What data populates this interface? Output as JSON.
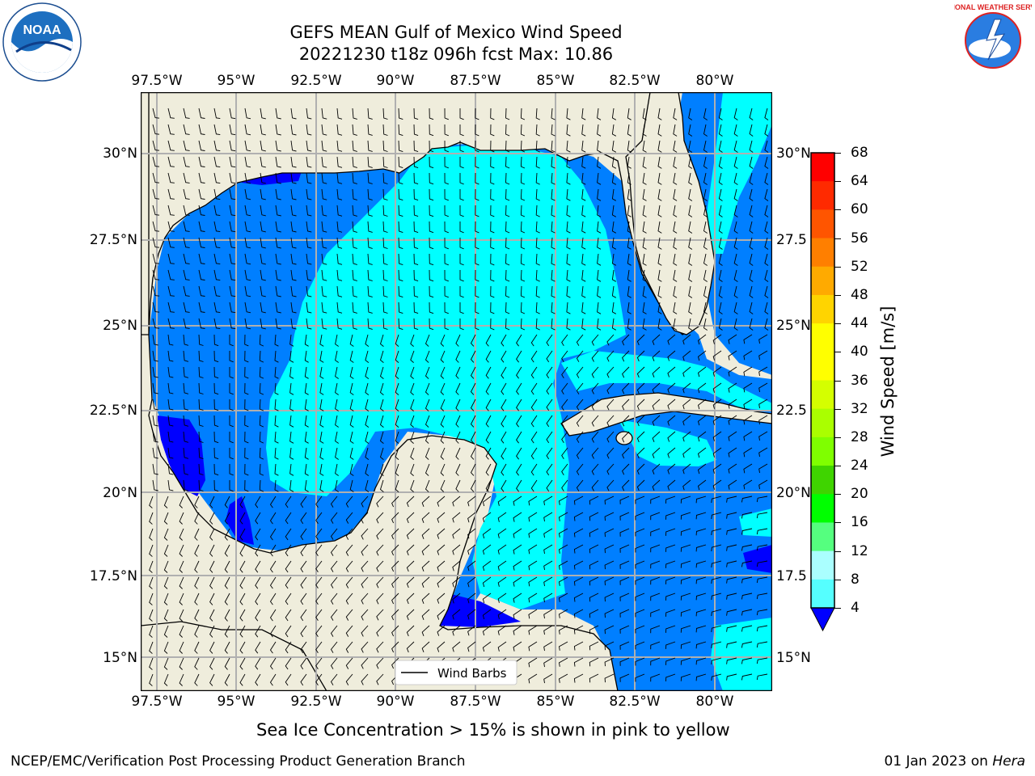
{
  "title": {
    "line1": "GEFS MEAN Gulf of Mexico Wind Speed",
    "line2": "20221230 t18z 096h fcst   Max: 10.86"
  },
  "logos": {
    "left": "NOAA",
    "right": "NATIONAL WEATHER SERVICE"
  },
  "axes": {
    "lon_ticks": [
      "97.5°W",
      "95°W",
      "92.5°W",
      "90°W",
      "87.5°W",
      "85°W",
      "82.5°W",
      "80°W"
    ],
    "lat_ticks_left": [
      "30°N",
      "27.5°N",
      "25°N",
      "22.5°N",
      "20°N",
      "17.5°N",
      "15°N"
    ],
    "lat_ticks_right": [
      "30°N",
      "27.5",
      "25°N",
      "22.5",
      "20°N",
      "17.5",
      "15°N"
    ]
  },
  "legend": {
    "label": "Wind Barbs"
  },
  "colorbar": {
    "label": "Wind Speed [m/s]",
    "ticks": [
      "68",
      "64",
      "60",
      "56",
      "52",
      "48",
      "44",
      "40",
      "36",
      "32",
      "28",
      "24",
      "20",
      "16",
      "12",
      "8",
      "4"
    ],
    "colors": [
      "#ff0000",
      "#ff2a00",
      "#ff5500",
      "#ff7f00",
      "#ffaa00",
      "#ffd400",
      "#ffff00",
      "#ffff00",
      "#d4ff00",
      "#aaff00",
      "#7fff00",
      "#3fd400",
      "#00ff00",
      "#55ff7f",
      "#aaffff",
      "#55ffff",
      "#00ffff",
      "#007fff"
    ]
  },
  "map_colors": {
    "land": "#efeddc",
    "c4": "#007fff",
    "c8": "#00ffff",
    "c0": "#0000ff"
  },
  "note": "Sea Ice Concentration > 15% is shown in pink to yellow",
  "footer": {
    "left": "NCEP/EMC/Verification Post Processing Product Generation Branch",
    "date": "01 Jan 2023 on",
    "machine": "Hera"
  }
}
